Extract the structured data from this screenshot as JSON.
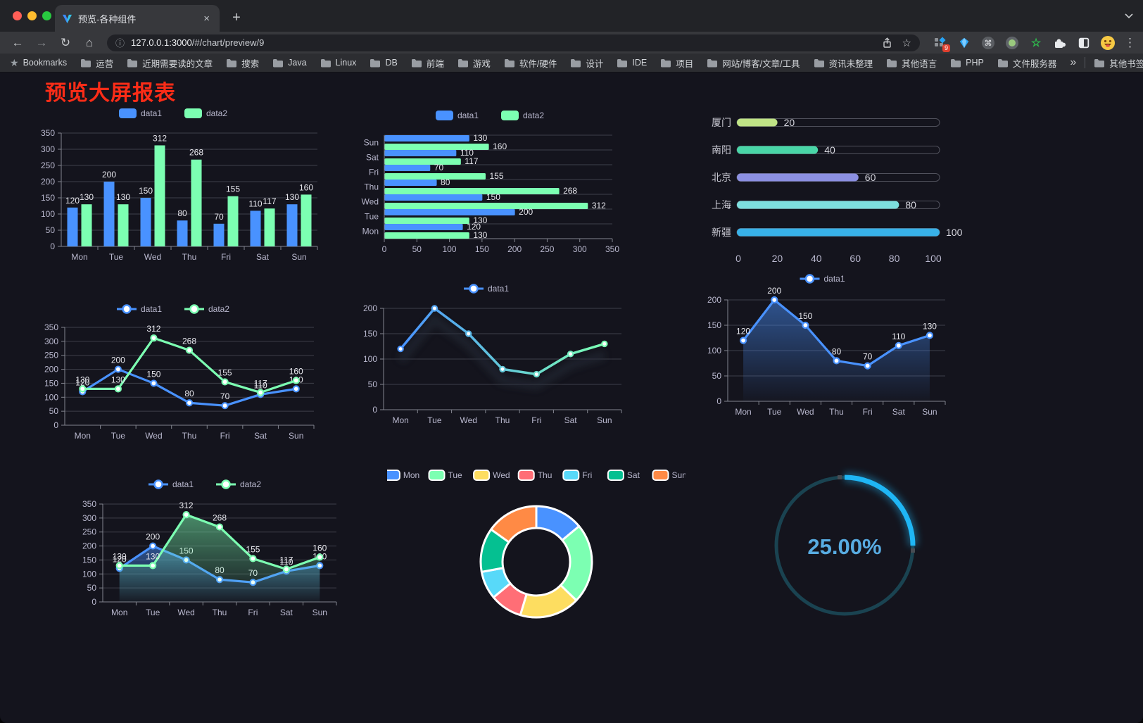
{
  "browser": {
    "window_controls": {
      "close_color": "#ff5f57",
      "minimize_color": "#febc2e",
      "zoom_color": "#28c840"
    },
    "tab": {
      "title": "预览-各种组件",
      "close_glyph": "×"
    },
    "new_tab_glyph": "+",
    "nav": {
      "back_glyph": "←",
      "forward_glyph": "→",
      "reload_glyph": "↻",
      "home_glyph": "⌂"
    },
    "omnibox": {
      "info_glyph": "ⓘ",
      "host": "127.0.0.1:3000",
      "path": "/#/chart/preview/9",
      "star_glyph": "☆"
    },
    "extensions_badge": "9",
    "menu_glyph": "⋮",
    "bookmarks_bar": {
      "star_glyph": "★",
      "label": "Bookmarks",
      "folders": [
        "运营",
        "近期需要读的文章",
        "搜索",
        "Java",
        "Linux",
        "DB",
        "前端",
        "游戏",
        "软件/硬件",
        "设计",
        "IDE",
        "项目",
        "网站/博客/文章/工具",
        "资讯未整理",
        "其他语言",
        "PHP",
        "文件服务器"
      ],
      "overflow_glyph": "»",
      "other_bookmarks": "其他书签"
    }
  },
  "page": {
    "title": "预览大屏报表",
    "title_color": "#fb2c17",
    "background": "#14141d"
  },
  "chart_data": [
    {
      "id": "bar-grouped",
      "type": "bar",
      "categories": [
        "Mon",
        "Tue",
        "Wed",
        "Thu",
        "Fri",
        "Sat",
        "Sun"
      ],
      "series": [
        {
          "name": "data1",
          "color": "#4992ff",
          "values": [
            120,
            200,
            150,
            80,
            70,
            110,
            130
          ]
        },
        {
          "name": "data2",
          "color": "#7cffb2",
          "values": [
            130,
            130,
            312,
            268,
            155,
            117,
            160
          ]
        }
      ],
      "legend": [
        "data1",
        "data2"
      ],
      "ylim": [
        0,
        350
      ],
      "ytick": 50,
      "yticks": [
        0,
        50,
        100,
        150,
        200,
        250,
        300,
        350
      ],
      "value_labels": true,
      "grid": true
    },
    {
      "id": "bar-horizontal",
      "type": "bar",
      "orientation": "horizontal",
      "categories": [
        "Mon",
        "Tue",
        "Wed",
        "Thu",
        "Fri",
        "Sat",
        "Sun"
      ],
      "row_order_top_to_bottom": [
        "Sun",
        "Sat",
        "Fri",
        "Thu",
        "Wed",
        "Tue",
        "Mon"
      ],
      "series": [
        {
          "name": "data1",
          "color": "#4992ff",
          "values": [
            120,
            200,
            150,
            80,
            70,
            110,
            130
          ]
        },
        {
          "name": "data2",
          "color": "#7cffb2",
          "values": [
            130,
            130,
            312,
            268,
            155,
            117,
            160
          ]
        }
      ],
      "legend": [
        "data1",
        "data2"
      ],
      "xlim": [
        0,
        350
      ],
      "xtick": 50,
      "xticks": [
        0,
        50,
        100,
        150,
        200,
        250,
        300,
        350
      ],
      "value_labels": true,
      "grid": true
    },
    {
      "id": "progress-bars",
      "type": "bar",
      "orientation": "horizontal",
      "categories": [
        "厦门",
        "南阳",
        "北京",
        "上海",
        "新疆"
      ],
      "values": [
        20,
        40,
        60,
        80,
        100
      ],
      "colors": [
        "#c0e486",
        "#49d6a7",
        "#8c90e2",
        "#7ddede",
        "#38b1e8"
      ],
      "xlim": [
        0,
        100
      ],
      "xticks": [
        0,
        20,
        40,
        60,
        80,
        100
      ],
      "value_labels": true,
      "track": true
    },
    {
      "id": "line-two-series",
      "type": "line",
      "categories": [
        "Mon",
        "Tue",
        "Wed",
        "Thu",
        "Fri",
        "Sat",
        "Sun"
      ],
      "series": [
        {
          "name": "data1",
          "color": "#4992ff",
          "values": [
            120,
            200,
            150,
            80,
            70,
            110,
            130
          ]
        },
        {
          "name": "data2",
          "color": "#7cffb2",
          "values": [
            130,
            130,
            312,
            268,
            155,
            117,
            160
          ]
        }
      ],
      "legend": [
        "data1",
        "data2"
      ],
      "ylim": [
        0,
        350
      ],
      "ytick": 50,
      "yticks": [
        0,
        50,
        100,
        150,
        200,
        250,
        300,
        350
      ],
      "value_labels": true,
      "markers": true
    },
    {
      "id": "line-gradient",
      "type": "line",
      "categories": [
        "Mon",
        "Tue",
        "Wed",
        "Thu",
        "Fri",
        "Sat",
        "Sun"
      ],
      "series": [
        {
          "name": "data1",
          "gradient": [
            "#4992ff",
            "#7cffb2"
          ],
          "values": [
            120,
            200,
            150,
            80,
            70,
            110,
            130
          ]
        }
      ],
      "legend": [
        "data1"
      ],
      "ylim": [
        0,
        200
      ],
      "ytick": 50,
      "yticks": [
        0,
        50,
        100,
        150,
        200
      ],
      "value_labels": false,
      "markers": true
    },
    {
      "id": "area-single",
      "type": "area",
      "categories": [
        "Mon",
        "Tue",
        "Wed",
        "Thu",
        "Fri",
        "Sat",
        "Sun"
      ],
      "series": [
        {
          "name": "data1",
          "color": "#4992ff",
          "values": [
            120,
            200,
            150,
            80,
            70,
            110,
            130
          ]
        }
      ],
      "legend": [
        "data1"
      ],
      "ylim": [
        0,
        200
      ],
      "ytick": 50,
      "yticks": [
        0,
        50,
        100,
        150,
        200
      ],
      "value_labels": true,
      "markers": true
    },
    {
      "id": "area-two-series",
      "type": "area",
      "categories": [
        "Mon",
        "Tue",
        "Wed",
        "Thu",
        "Fri",
        "Sat",
        "Sun"
      ],
      "series": [
        {
          "name": "data1",
          "color": "#4992ff",
          "values": [
            120,
            200,
            150,
            80,
            70,
            110,
            130
          ]
        },
        {
          "name": "data2",
          "color": "#7cffb2",
          "values": [
            130,
            130,
            312,
            268,
            155,
            117,
            160
          ]
        }
      ],
      "legend": [
        "data1",
        "data2"
      ],
      "ylim": [
        0,
        350
      ],
      "ytick": 50,
      "yticks": [
        0,
        50,
        100,
        150,
        200,
        250,
        300,
        350
      ],
      "value_labels": true,
      "markers": true
    },
    {
      "id": "donut",
      "type": "pie",
      "donut": true,
      "categories": [
        "Mon",
        "Tue",
        "Wed",
        "Thu",
        "Fri",
        "Sat",
        "Sun"
      ],
      "values": [
        120,
        200,
        150,
        80,
        70,
        110,
        130
      ],
      "colors": [
        "#4992ff",
        "#7cffb2",
        "#fddd60",
        "#ff6e76",
        "#58d9f9",
        "#05c091",
        "#ff8a45"
      ],
      "border_color": "#ffffff",
      "legend": [
        "Mon",
        "Tue",
        "Wed",
        "Thu",
        "Fri",
        "Sat",
        "Sun"
      ]
    },
    {
      "id": "gauge",
      "type": "gauge",
      "percent": 25,
      "label": "25.00%",
      "progress_color": "#1fb6f5",
      "track_color": "#1a4351",
      "label_color": "#58ace2"
    }
  ]
}
